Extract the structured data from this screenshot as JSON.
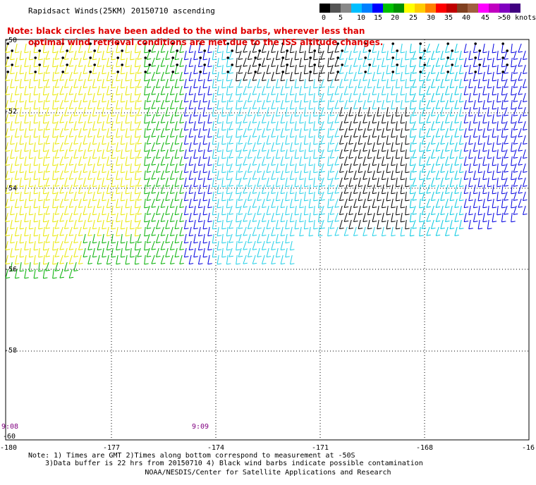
{
  "title": "Rapidsact Winds(25KM) 20150710 ascending",
  "note": {
    "line1": "Note: black circles have been added to the wind barbs, wherever less than",
    "line2": "optimal wind retrieval conditions are met due to the ISS altitude changes."
  },
  "colorbar": {
    "colors": [
      "#000000",
      "#555555",
      "#888888",
      "#00bfff",
      "#0080ff",
      "#0000ff",
      "#00c000",
      "#009000",
      "#ffff00",
      "#ffcc00",
      "#ff8000",
      "#ff0000",
      "#c00000",
      "#804020",
      "#a06040",
      "#ff00ff",
      "#c000c0",
      "#8000c0",
      "#400080"
    ],
    "labels": [
      "0",
      "5",
      "10",
      "15",
      "20",
      "25",
      "30",
      "35",
      "40",
      "45",
      ">50 knots"
    ]
  },
  "axes": {
    "x_ticks": [
      "-180",
      "-177",
      "-174",
      "-171",
      "-168",
      "-16"
    ],
    "y_ticks": [
      "-50",
      "-52",
      "-54",
      "-56",
      "-58",
      "-60"
    ]
  },
  "times": [
    "9:08",
    "9:09"
  ],
  "footer": {
    "line1": "Note: 1) Times are GMT 2)Times along bottom correspond to measurement at -50S",
    "line2": "3)Data buffer is 22 hrs from 20150710 4) Black wind barbs indicate possible contamination",
    "line3": "NOAA/NESDIS/Center for Satellite Applications and Research"
  },
  "map_data": {
    "type": "wind_barb_map",
    "lon_range": [
      -180,
      -165
    ],
    "lat_range": [
      -60,
      -50
    ],
    "speed_color_scale_knots": [
      0,
      5,
      10,
      15,
      20,
      25,
      30,
      35,
      40,
      45,
      50
    ],
    "grid": true
  }
}
